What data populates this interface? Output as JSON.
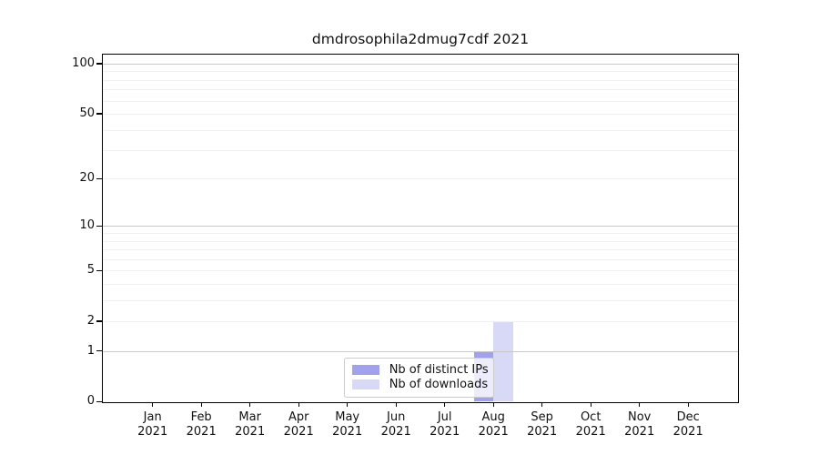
{
  "chart_data": {
    "type": "bar",
    "title": "dmdrosophila2dmug7cdf 2021",
    "categories": [
      "Jan 2021",
      "Feb 2021",
      "Mar 2021",
      "Apr 2021",
      "May 2021",
      "Jun 2021",
      "Jul 2021",
      "Aug 2021",
      "Sep 2021",
      "Oct 2021",
      "Nov 2021",
      "Dec 2021"
    ],
    "series": [
      {
        "name": "Nb of distinct IPs",
        "color": "#a1a1ec",
        "values": [
          0,
          0,
          0,
          0,
          0,
          0,
          0,
          1,
          0,
          0,
          0,
          0
        ]
      },
      {
        "name": "Nb of downloads",
        "color": "#d8d8f7",
        "values": [
          0,
          0,
          0,
          0,
          0,
          0,
          0,
          2,
          0,
          0,
          0,
          0
        ]
      }
    ],
    "y_axis": {
      "ticks": [
        0,
        1,
        2,
        5,
        10,
        20,
        50,
        100
      ],
      "scale": "log10(value+1)",
      "ylim": [
        0,
        100
      ]
    },
    "x_axis": {
      "label": "",
      "tick_label_lines": 2
    },
    "legend": {
      "entries": [
        "Nb of distinct IPs",
        "Nb of downloads"
      ],
      "position": "bottom-center-inside"
    },
    "grid": {
      "horizontal": true,
      "minor_values": [
        1,
        2,
        3,
        4,
        5,
        6,
        7,
        8,
        9,
        10,
        20,
        30,
        40,
        50,
        60,
        70,
        80,
        90,
        100
      ],
      "decade_values": [
        1,
        10,
        100
      ],
      "minor_color": "#f0f0f0",
      "decade_color": "#c8c8c8"
    }
  }
}
